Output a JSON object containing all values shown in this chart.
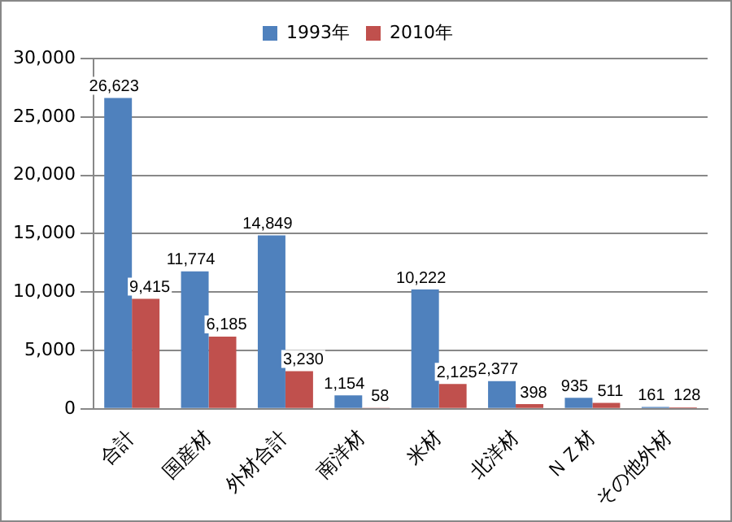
{
  "chart_data": {
    "type": "bar",
    "categories": [
      "合計",
      "国産材",
      "外材合計",
      "南洋材",
      "米材",
      "北洋材",
      "ＮＺ材",
      "その他外材"
    ],
    "series": [
      {
        "name": "1993年",
        "color": "#4f81bd",
        "values": [
          26623,
          11774,
          14849,
          1154,
          10222,
          2377,
          935,
          161
        ],
        "value_labels": [
          "26,623",
          "11,774",
          "14,849",
          "1,154",
          "10,222",
          "2,377",
          "935",
          "161"
        ]
      },
      {
        "name": "2010年",
        "color": "#c0504d",
        "values": [
          9415,
          6185,
          3230,
          58,
          2125,
          398,
          511,
          128
        ],
        "value_labels": [
          "9,415",
          "6,185",
          "3,230",
          "58",
          "2,125",
          "398",
          "511",
          "128"
        ]
      }
    ],
    "ylim": [
      0,
      30000
    ],
    "yticks": [
      {
        "value": 0,
        "label": "0"
      },
      {
        "value": 5000,
        "label": "5,000"
      },
      {
        "value": 10000,
        "label": "10,000"
      },
      {
        "value": 15000,
        "label": "15,000"
      },
      {
        "value": 20000,
        "label": "20,000"
      },
      {
        "value": 25000,
        "label": "25,000"
      },
      {
        "value": 30000,
        "label": "30,000"
      }
    ],
    "grid": "y",
    "legend": "top"
  }
}
